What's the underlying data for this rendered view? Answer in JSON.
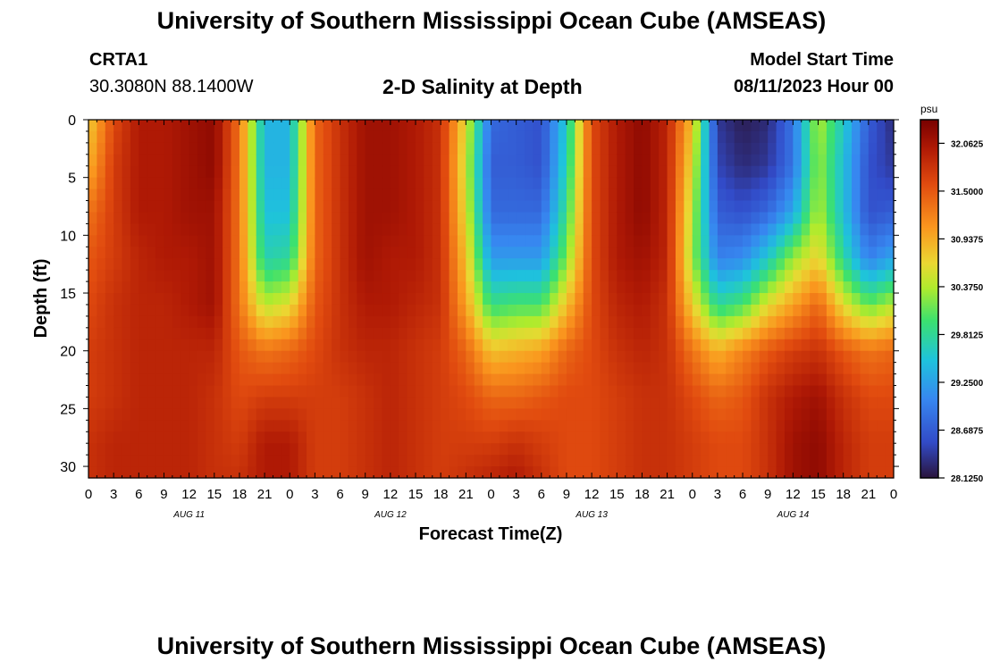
{
  "page_title": "University of Southern Mississippi Ocean Cube (AMSEAS)",
  "station": {
    "name": "CRTA1",
    "coords": "30.3080N  88.1400W"
  },
  "model_start": {
    "label": "Model Start Time",
    "value": "08/11/2023 Hour 00"
  },
  "chart_data": {
    "type": "heatmap",
    "title": "2-D Salinity at Depth",
    "xlabel": "Forecast Time(Z)",
    "ylabel": "Depth (ft)",
    "x_hours": [
      0,
      3,
      6,
      9,
      12,
      15,
      18,
      21,
      24,
      27,
      30,
      33,
      36,
      39,
      42,
      45,
      48,
      51,
      54,
      57,
      60,
      63,
      66,
      69,
      72,
      75,
      78,
      81,
      84,
      87,
      90,
      93,
      96
    ],
    "x_tick_labels": [
      "0",
      "3",
      "6",
      "9",
      "12",
      "15",
      "18",
      "21",
      "0",
      "3",
      "6",
      "9",
      "12",
      "15",
      "18",
      "21",
      "0",
      "3",
      "6",
      "9",
      "12",
      "15",
      "18",
      "21",
      "0",
      "3",
      "6",
      "9",
      "12",
      "15",
      "18",
      "21",
      "0"
    ],
    "x_date_labels": [
      {
        "hour": 12,
        "label": "AUG 11"
      },
      {
        "hour": 36,
        "label": "AUG 12"
      },
      {
        "hour": 60,
        "label": "AUG 13"
      },
      {
        "hour": 84,
        "label": "AUG 14"
      }
    ],
    "y_ticks": [
      0,
      5,
      10,
      15,
      20,
      25,
      30
    ],
    "ylim": [
      0,
      31
    ],
    "colorbar": {
      "unit": "psu",
      "range": [
        28.125,
        32.34
      ],
      "tick_values": [
        32.0625,
        31.5,
        30.9375,
        30.375,
        29.8125,
        29.25,
        28.6875,
        28.125
      ],
      "tick_labels": [
        "32.0625",
        "31.5000",
        "30.9375",
        "30.3750",
        "29.8125",
        "29.2500",
        "28.6875",
        "28.1250"
      ]
    },
    "depth_profiles_ft": [
      0,
      4,
      8,
      12,
      16,
      20,
      24,
      28,
      31
    ],
    "salinity_psu": [
      [
        30.7,
        30.9,
        31.3,
        31.5,
        31.6,
        31.7,
        31.7,
        31.8,
        31.8
      ],
      [
        31.6,
        31.7,
        31.7,
        31.7,
        31.8,
        31.8,
        31.8,
        31.9,
        31.9
      ],
      [
        32.0,
        32.0,
        32.0,
        31.9,
        31.9,
        31.9,
        31.9,
        31.9,
        31.9
      ],
      [
        32.0,
        32.0,
        32.0,
        32.0,
        31.9,
        31.9,
        31.9,
        31.9,
        31.9
      ],
      [
        32.1,
        32.1,
        32.1,
        32.0,
        32.0,
        31.9,
        31.9,
        31.9,
        31.9
      ],
      [
        32.2,
        32.2,
        32.1,
        32.1,
        32.1,
        31.9,
        31.8,
        31.8,
        31.8
      ],
      [
        31.3,
        31.3,
        31.3,
        31.3,
        31.3,
        31.5,
        31.6,
        31.7,
        31.8
      ],
      [
        29.4,
        29.4,
        29.5,
        29.7,
        30.4,
        31.3,
        31.7,
        32.0,
        32.0
      ],
      [
        29.4,
        29.4,
        29.5,
        29.8,
        30.6,
        31.4,
        31.7,
        32.0,
        32.0
      ],
      [
        31.4,
        31.4,
        31.4,
        31.4,
        31.5,
        31.6,
        31.7,
        31.7,
        31.7
      ],
      [
        31.8,
        31.8,
        31.8,
        31.8,
        31.8,
        31.8,
        31.7,
        31.7,
        31.7
      ],
      [
        32.1,
        32.1,
        32.1,
        32.1,
        32.0,
        31.9,
        31.8,
        31.8,
        31.8
      ],
      [
        32.1,
        32.1,
        32.1,
        32.0,
        32.0,
        31.9,
        31.9,
        31.9,
        31.9
      ],
      [
        32.0,
        32.0,
        32.0,
        32.0,
        31.9,
        31.8,
        31.8,
        31.8,
        31.8
      ],
      [
        31.8,
        31.8,
        31.8,
        31.8,
        31.8,
        31.7,
        31.7,
        31.7,
        31.7
      ],
      [
        30.6,
        30.5,
        30.6,
        30.8,
        31.0,
        31.4,
        31.6,
        31.7,
        31.8
      ],
      [
        28.8,
        28.7,
        28.8,
        29.2,
        29.9,
        30.8,
        31.4,
        31.7,
        31.9
      ],
      [
        28.7,
        28.7,
        28.8,
        29.2,
        30.0,
        30.9,
        31.4,
        31.8,
        32.0
      ],
      [
        28.6,
        28.6,
        28.8,
        29.2,
        30.0,
        31.0,
        31.5,
        31.7,
        31.8
      ],
      [
        29.6,
        29.7,
        29.9,
        30.2,
        30.8,
        31.4,
        31.6,
        31.6,
        31.6
      ],
      [
        31.6,
        31.6,
        31.6,
        31.6,
        31.6,
        31.6,
        31.6,
        31.6,
        31.6
      ],
      [
        32.0,
        32.0,
        32.0,
        32.0,
        31.9,
        31.8,
        31.7,
        31.7,
        31.7
      ],
      [
        32.2,
        32.2,
        32.2,
        32.1,
        32.0,
        31.9,
        31.8,
        31.8,
        31.8
      ],
      [
        31.9,
        31.9,
        31.9,
        31.9,
        31.8,
        31.8,
        31.8,
        31.8,
        31.8
      ],
      [
        30.8,
        30.6,
        30.4,
        30.3,
        30.7,
        31.3,
        31.6,
        31.7,
        31.7
      ],
      [
        28.4,
        28.5,
        28.7,
        29.0,
        29.8,
        30.9,
        31.4,
        31.6,
        31.6
      ],
      [
        28.2,
        28.3,
        28.6,
        29.1,
        30.0,
        31.2,
        31.5,
        31.6,
        31.6
      ],
      [
        28.3,
        28.4,
        28.8,
        29.6,
        30.6,
        31.5,
        31.8,
        31.8,
        31.8
      ],
      [
        28.9,
        28.9,
        29.3,
        30.3,
        31.0,
        31.7,
        32.0,
        32.1,
        32.1
      ],
      [
        30.4,
        30.3,
        30.4,
        30.7,
        31.4,
        31.8,
        32.1,
        32.2,
        32.2
      ],
      [
        29.6,
        29.5,
        29.5,
        29.8,
        30.6,
        31.5,
        31.8,
        31.9,
        31.9
      ],
      [
        28.7,
        28.6,
        28.6,
        29.0,
        30.1,
        31.3,
        31.6,
        31.7,
        31.7
      ],
      [
        28.3,
        28.4,
        28.7,
        29.3,
        30.4,
        31.4,
        31.6,
        31.7,
        31.7
      ]
    ]
  }
}
